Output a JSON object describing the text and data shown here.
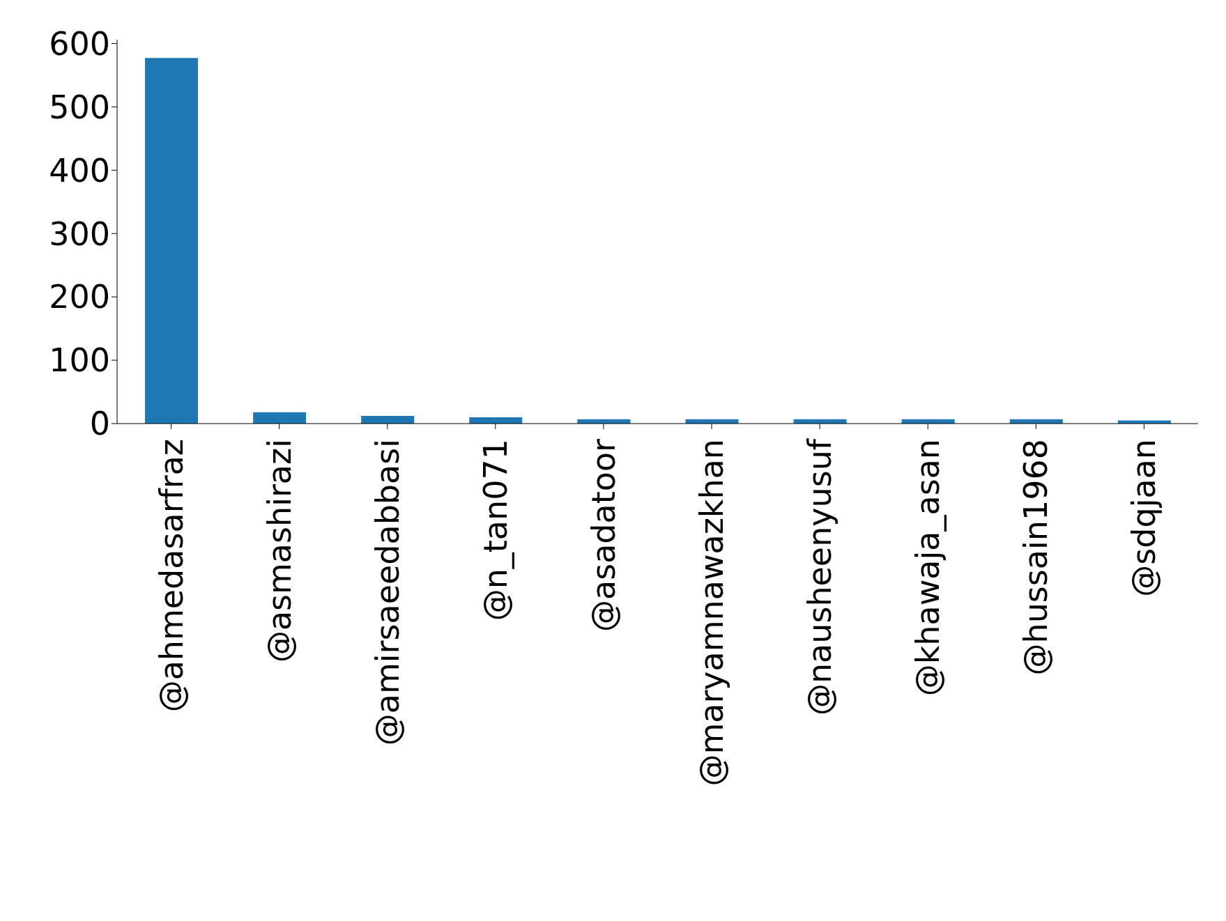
{
  "chart_data": {
    "type": "bar",
    "categories": [
      "@ahmedasarfraz",
      "@asmashirazi",
      "@amirsaeedabbasi",
      "@n_tan071",
      "@asadatoor",
      "@maryamnawazkhan",
      "@nausheenyusuf",
      "@khawaja_asan",
      "@hussain1968",
      "@sdqjaan"
    ],
    "values": [
      577,
      18,
      12,
      10,
      7,
      7,
      7,
      7,
      7,
      5
    ],
    "color": "#1f77b4",
    "ylim": [
      0,
      606
    ],
    "yticks": [
      0,
      100,
      200,
      300,
      400,
      500,
      600
    ],
    "grid": false
  }
}
